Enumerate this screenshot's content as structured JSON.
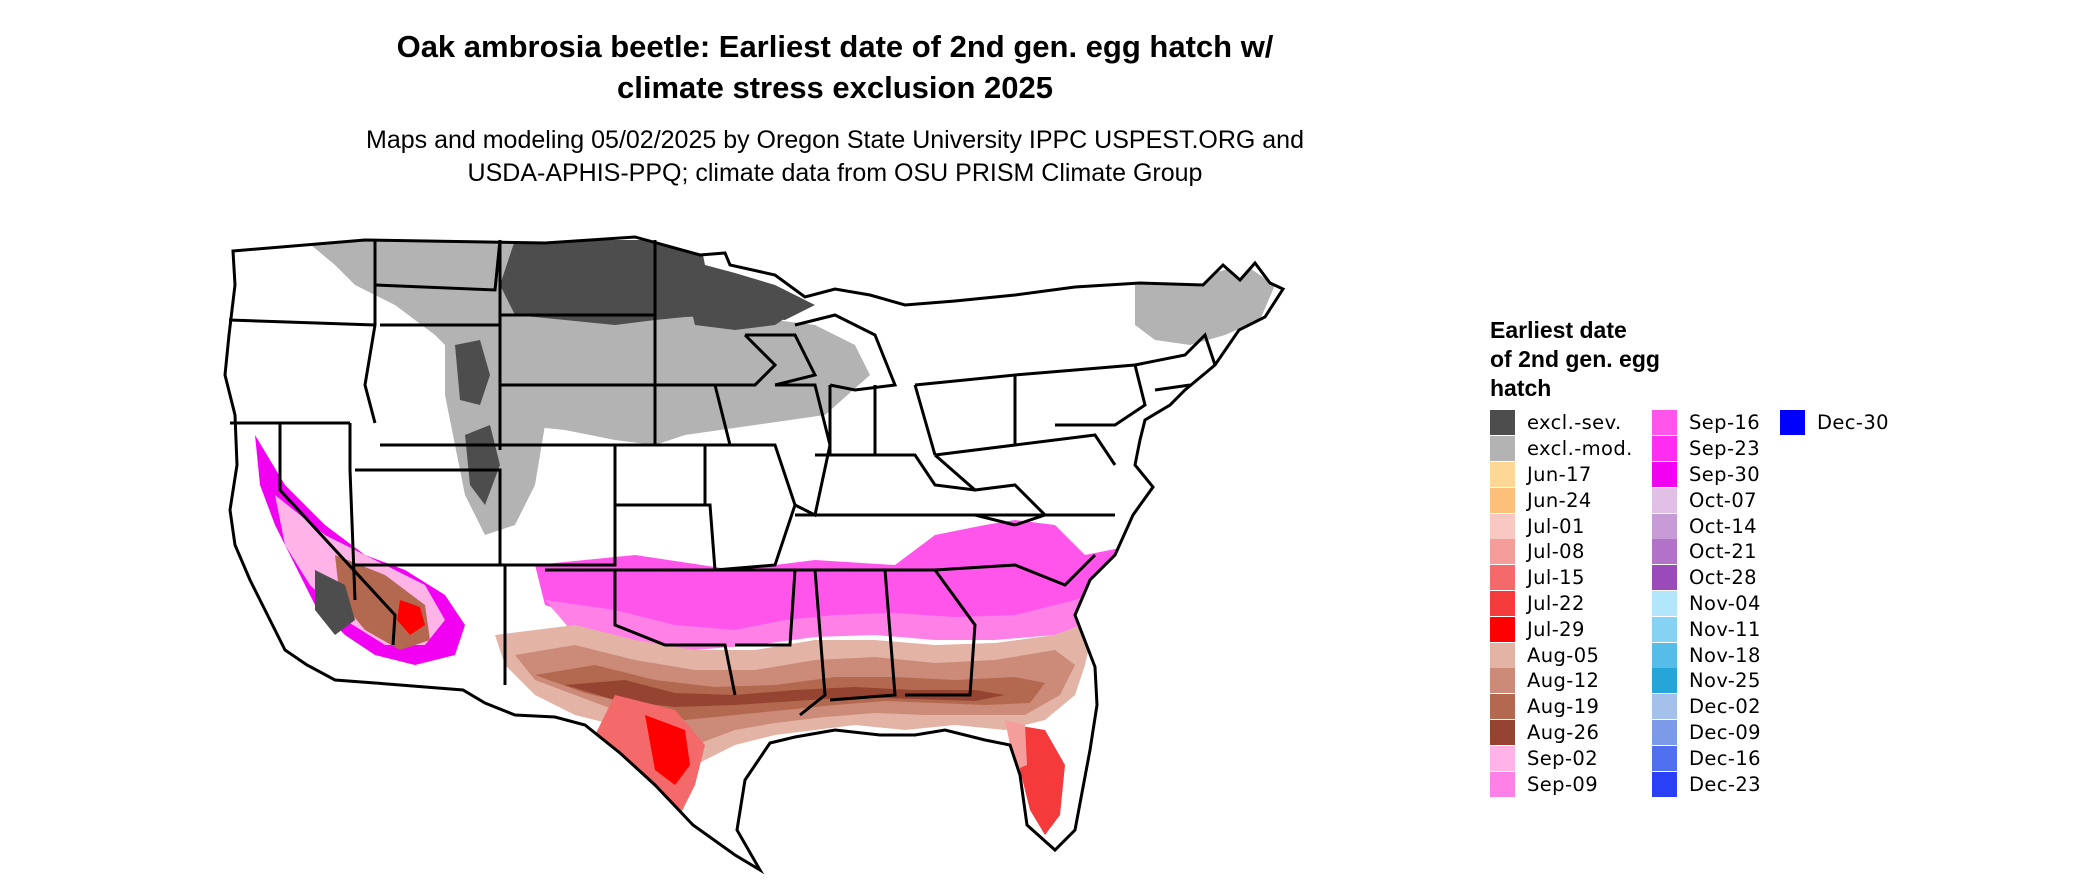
{
  "title_line1": "Oak ambrosia beetle: Earliest date of 2nd gen. egg hatch w/",
  "title_line2": "climate stress exclusion 2025",
  "subtitle_line1": "Maps and modeling 05/02/2025 by Oregon State University IPPC USPEST.ORG and",
  "subtitle_line2": "USDA-APHIS-PPQ; climate data from OSU PRISM Climate Group",
  "legend": {
    "title_line1": "Earliest date",
    "title_line2": "of 2nd gen. egg",
    "title_line3": "hatch",
    "items": [
      {
        "label": "excl.-sev.",
        "color": "#4d4d4d"
      },
      {
        "label": "excl.-mod.",
        "color": "#b3b3b3"
      },
      {
        "label": "Jun-17",
        "color": "#fdd795"
      },
      {
        "label": "Jun-24",
        "color": "#fdc07a"
      },
      {
        "label": "Jul-01",
        "color": "#fac8c2"
      },
      {
        "label": "Jul-08",
        "color": "#f59d9b"
      },
      {
        "label": "Jul-15",
        "color": "#f46a6a"
      },
      {
        "label": "Jul-22",
        "color": "#f43a3a"
      },
      {
        "label": "Jul-29",
        "color": "#ff0000"
      },
      {
        "label": "Aug-05",
        "color": "#e3b3a6"
      },
      {
        "label": "Aug-12",
        "color": "#cc8b79"
      },
      {
        "label": "Aug-19",
        "color": "#b3694f"
      },
      {
        "label": "Aug-26",
        "color": "#964432"
      },
      {
        "label": "Sep-02",
        "color": "#ffb3e6"
      },
      {
        "label": "Sep-09",
        "color": "#ff80e6"
      },
      {
        "label": "Sep-16",
        "color": "#ff55ea"
      },
      {
        "label": "Sep-23",
        "color": "#ff2ef0"
      },
      {
        "label": "Sep-30",
        "color": "#f200f2"
      },
      {
        "label": "Oct-07",
        "color": "#e0c0e4"
      },
      {
        "label": "Oct-14",
        "color": "#c79bd6"
      },
      {
        "label": "Oct-21",
        "color": "#b272c8"
      },
      {
        "label": "Oct-28",
        "color": "#9b4ab9"
      },
      {
        "label": "Nov-04",
        "color": "#b2e6fa"
      },
      {
        "label": "Nov-11",
        "color": "#86d2f2"
      },
      {
        "label": "Nov-18",
        "color": "#55bde8"
      },
      {
        "label": "Nov-25",
        "color": "#26a5d8"
      },
      {
        "label": "Dec-02",
        "color": "#a4c1ec"
      },
      {
        "label": "Dec-09",
        "color": "#7b9ae8"
      },
      {
        "label": "Dec-16",
        "color": "#5070f0"
      },
      {
        "label": "Dec-23",
        "color": "#2a40f6"
      },
      {
        "label": "Dec-30",
        "color": "#0000ff"
      }
    ]
  }
}
